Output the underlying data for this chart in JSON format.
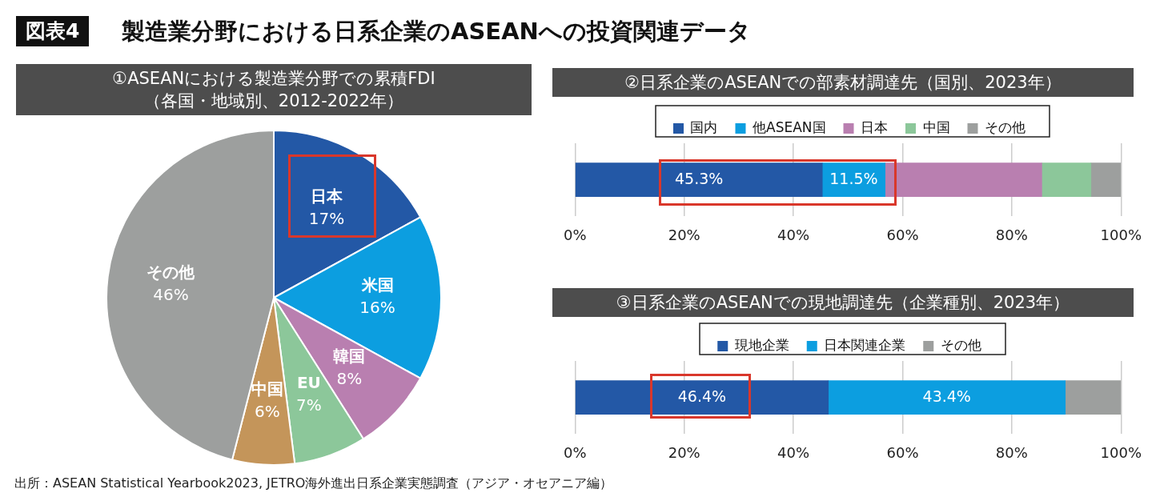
{
  "chart_data": [
    {
      "type": "pie",
      "title": "①ASEANにおける製造業分野での累積FDI",
      "subtitle": "（各国・地域別、2012-2022年）",
      "categories": [
        "日本",
        "米国",
        "韓国",
        "EU",
        "中国",
        "その他"
      ],
      "values": [
        17,
        16,
        8,
        7,
        6,
        46
      ],
      "colors": [
        "#2358a6",
        "#0c9ee0",
        "#b97fb0",
        "#8cc79a",
        "#c4955a",
        "#9d9f9e"
      ],
      "value_labels": [
        "17%",
        "16%",
        "8%",
        "7%",
        "6%",
        "46%"
      ],
      "annotations": [
        "図表4",
        "製造業分野における日系企業のASEANへの投資関連データ",
        "出所：ASEAN Statistical Yearbook2023, JETRO海外進出日系企業実態調査（アジア・オセアニア編）"
      ]
    },
    {
      "type": "bar",
      "orientation": "horizontal",
      "stacked": true,
      "title": "②日系企業のASEANでの部素材調達先（国別、2023年）",
      "categories": [
        null
      ],
      "series": [
        {
          "name": "国内",
          "color": "#2358a6",
          "values": [
            45.3
          ],
          "value_labels": [
            "45.3%"
          ]
        },
        {
          "name": "他ASEAN国",
          "color": "#0c9ee0",
          "values": [
            11.5
          ],
          "value_labels": [
            "11.5%"
          ]
        },
        {
          "name": "日本",
          "color": "#b97fb0",
          "values": [
            28.7
          ]
        },
        {
          "name": "中国",
          "color": "#8cc79a",
          "values": [
            9.0
          ]
        },
        {
          "name": "その他",
          "color": "#9d9f9e",
          "values": [
            5.5
          ]
        }
      ],
      "xlim": [
        0,
        100
      ],
      "xticks": [
        {
          "value": 0,
          "label": "0%"
        },
        {
          "value": 20,
          "label": "20%"
        },
        {
          "value": 40,
          "label": "40%"
        },
        {
          "value": 60,
          "label": "60%"
        },
        {
          "value": 80,
          "label": "80%"
        },
        {
          "value": 100,
          "label": "100%"
        }
      ],
      "grid": "x",
      "legend": "top"
    },
    {
      "type": "bar",
      "orientation": "horizontal",
      "stacked": true,
      "title": "③日系企業のASEANでの現地調達先（企業種別、2023年）",
      "categories": [
        null
      ],
      "series": [
        {
          "name": "現地企業",
          "color": "#2358a6",
          "values": [
            46.4
          ],
          "value_labels": [
            "46.4%"
          ]
        },
        {
          "name": "日本関連企業",
          "color": "#0c9ee0",
          "values": [
            43.4
          ],
          "value_labels": [
            "43.4%"
          ]
        },
        {
          "name": "その他",
          "color": "#9d9f9e",
          "values": [
            10.2
          ]
        }
      ],
      "xlim": [
        0,
        100
      ],
      "xticks": [
        {
          "value": 0,
          "label": "0%"
        },
        {
          "value": 20,
          "label": "20%"
        },
        {
          "value": 40,
          "label": "40%"
        },
        {
          "value": 60,
          "label": "60%"
        },
        {
          "value": 80,
          "label": "80%"
        },
        {
          "value": 100,
          "label": "100%"
        }
      ],
      "grid": "x",
      "legend": "top"
    }
  ]
}
